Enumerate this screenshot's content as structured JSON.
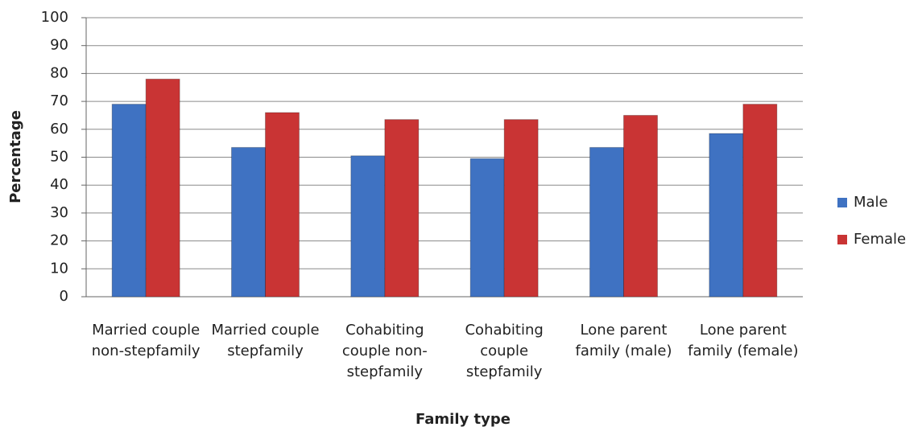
{
  "chart_data": {
    "type": "bar",
    "x_label": "Family type",
    "y_label": "Percentage",
    "categories": [
      "Married couple non-stepfamily",
      "Married couple stepfamily",
      "Cohabiting couple non-stepfamily",
      "Cohabiting couple stepfamily",
      "Lone parent family (male)",
      "Lone parent family (female)"
    ],
    "series": [
      {
        "name": "Male",
        "color": "#3f72c2",
        "values": [
          69,
          53.5,
          50.5,
          49.5,
          53.5,
          58.5
        ]
      },
      {
        "name": "Female",
        "color": "#c93434",
        "values": [
          78,
          66,
          63.5,
          63.5,
          65,
          69
        ]
      }
    ],
    "ylim": [
      0,
      100
    ],
    "yticks": [
      0,
      10,
      20,
      30,
      40,
      50,
      60,
      70,
      80,
      90,
      100
    ],
    "grid": true,
    "legend": "right"
  }
}
